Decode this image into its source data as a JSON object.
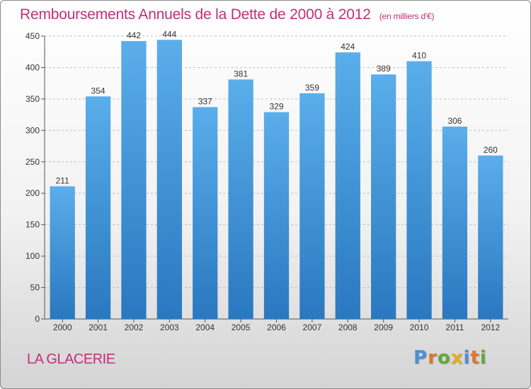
{
  "title": "Remboursements Annuels de la Dette de 2000 à 2012",
  "unit": "(en milliers d'€)",
  "commune": "LA GLACERIE",
  "logo": {
    "letters": [
      {
        "ch": "P",
        "color": "#4a8fd8"
      },
      {
        "ch": "r",
        "color": "#e0762a"
      },
      {
        "ch": "o",
        "color": "#64a83a"
      },
      {
        "ch": "x",
        "color": "#e0b020"
      },
      {
        "ch": "i",
        "color": "#4a8fd8"
      },
      {
        "ch": "t",
        "color": "#e0762a"
      },
      {
        "ch": "i",
        "color": "#64a83a"
      }
    ]
  },
  "colors": {
    "title": "#c0307a",
    "bar_top": "#5aaeea",
    "bar_bottom": "#2a78c0",
    "grid": "#bfbfbf",
    "axis_text": "#333333"
  },
  "chart_data": {
    "type": "bar",
    "categories": [
      "2000",
      "2001",
      "2002",
      "2003",
      "2004",
      "2005",
      "2006",
      "2007",
      "2008",
      "2009",
      "2010",
      "2011",
      "2012"
    ],
    "values": [
      211,
      354,
      442,
      444,
      337,
      381,
      329,
      359,
      424,
      389,
      410,
      306,
      260
    ],
    "ylim": [
      0,
      450
    ],
    "yticks": [
      0,
      50,
      100,
      150,
      200,
      250,
      300,
      350,
      400,
      450
    ],
    "grid": true,
    "legend": "none"
  }
}
